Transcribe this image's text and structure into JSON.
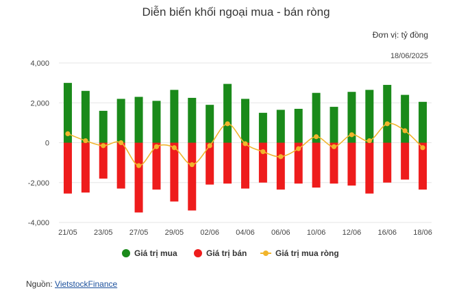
{
  "header": {
    "title": "Diễn biến khối ngoại mua - bán ròng",
    "unit": "Đơn vị: tỷ đồng",
    "date": "18/06/2025"
  },
  "legend": {
    "buy_label": "Giá trị mua",
    "sell_label": "Giá trị bán",
    "net_label": "Giá trị mua ròng"
  },
  "source": {
    "prefix": "Nguồn: ",
    "link_text": "VietstockFinance"
  },
  "colors": {
    "buy": "#1a8a1a",
    "sell": "#ee1c1c",
    "net": "#f1b52c",
    "grid": "#e6e6e6"
  },
  "chart_data": {
    "type": "bar",
    "x": [
      "21/05",
      "22/05",
      "23/05",
      "26/05",
      "27/05",
      "28/05",
      "29/05",
      "30/05",
      "02/06",
      "03/06",
      "04/06",
      "05/06",
      "06/06",
      "09/06",
      "10/06",
      "11/06",
      "12/06",
      "13/06",
      "16/06",
      "17/06",
      "18/06"
    ],
    "x_tick_labels": [
      "21/05",
      "23/05",
      "27/05",
      "29/05",
      "02/06",
      "04/06",
      "06/06",
      "10/06",
      "12/06",
      "16/06",
      "18/06"
    ],
    "y_tick_labels": [
      "4,000",
      "2,000",
      "0",
      "-2,000",
      "-4,000"
    ],
    "ylim": [
      -4000,
      4000
    ],
    "grid": true,
    "legend_position": "bottom",
    "series": [
      {
        "name": "Giá trị mua",
        "type": "bar",
        "values": [
          3000,
          2600,
          1600,
          2200,
          2300,
          2100,
          2650,
          2250,
          1900,
          2950,
          2200,
          1500,
          1650,
          1700,
          2500,
          1800,
          2550,
          2650,
          2900,
          2400,
          2050
        ]
      },
      {
        "name": "Giá trị bán",
        "type": "bar",
        "values": [
          -2550,
          -2500,
          -1800,
          -2300,
          -3500,
          -2350,
          -2950,
          -3400,
          -2100,
          -2050,
          -2300,
          -2000,
          -2350,
          -2050,
          -2250,
          -2050,
          -2150,
          -2550,
          -2000,
          -1850,
          -2350
        ]
      },
      {
        "name": "Giá trị mua ròng",
        "type": "line",
        "values": [
          450,
          100,
          -150,
          0,
          -1150,
          -200,
          -250,
          -1100,
          -150,
          950,
          -50,
          -450,
          -700,
          -300,
          300,
          -200,
          400,
          100,
          950,
          600,
          -250
        ]
      }
    ]
  }
}
